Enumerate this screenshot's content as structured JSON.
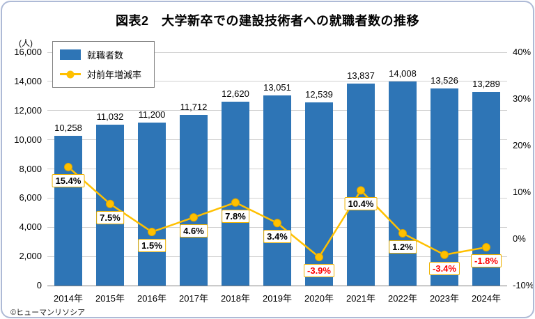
{
  "title": "図表2　大学新卒での建設技術者への就職者数の推移",
  "footer": "©ヒューマンリソシア",
  "legend": {
    "bars": "就職者数",
    "line": "対前年増減率"
  },
  "colors": {
    "bar": "#2e75b6",
    "line": "#ffc000",
    "line_marker_edge": "#dfa700",
    "label_border": "#eeb200",
    "negative": "#ff0000",
    "grid": "#d0d0d0",
    "axis": "#7f7f7f",
    "card_border": "#aebad6"
  },
  "chart_data": {
    "type": "bar",
    "subtype": "bar+line combo, dual axis",
    "title": "図表2　大学新卒での建設技術者への就職者数の推移",
    "categories": [
      "2014年",
      "2015年",
      "2016年",
      "2017年",
      "2018年",
      "2019年",
      "2020年",
      "2021年",
      "2022年",
      "2023年",
      "2024年"
    ],
    "series": [
      {
        "name": "就職者数",
        "type": "bar",
        "axis": "left",
        "values": [
          10258,
          11032,
          11200,
          11712,
          12620,
          13051,
          12539,
          13837,
          14008,
          13526,
          13289
        ],
        "labels": [
          "10,258",
          "11,032",
          "11,200",
          "11,712",
          "12,620",
          "13,051",
          "12,539",
          "13,837",
          "14,008",
          "13,526",
          "13,289"
        ]
      },
      {
        "name": "対前年増減率",
        "type": "line",
        "axis": "right",
        "values": [
          15.4,
          7.5,
          1.5,
          4.6,
          7.8,
          3.4,
          -3.9,
          10.4,
          1.2,
          -3.4,
          -1.8
        ],
        "labels": [
          "15.4%",
          "7.5%",
          "1.5%",
          "4.6%",
          "7.8%",
          "3.4%",
          "-3.9%",
          "10.4%",
          "1.2%",
          "-3.4%",
          "-1.8%"
        ]
      }
    ],
    "left_axis": {
      "unit": "(人)",
      "min": 0,
      "max": 16000,
      "ticks": [
        "0",
        "2,000",
        "4,000",
        "6,000",
        "8,000",
        "10,000",
        "12,000",
        "14,000",
        "16,000"
      ]
    },
    "right_axis": {
      "min": -10,
      "max": 40,
      "ticks": [
        "-10%",
        "0%",
        "10%",
        "20%",
        "30%",
        "40%"
      ]
    },
    "grid": true,
    "legend_position": "top-left"
  }
}
